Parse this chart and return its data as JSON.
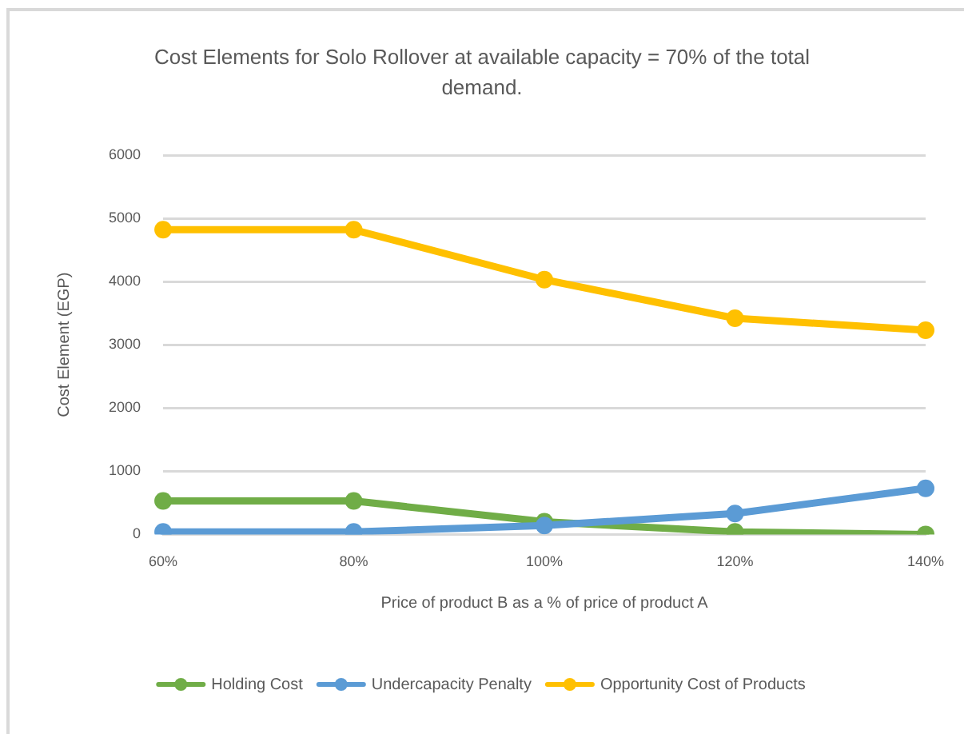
{
  "chart_data": {
    "type": "line",
    "title": "Cost Elements for Solo Rollover at available capacity = 70% of the total demand.",
    "xlabel": "Price of product B as a % of price of product A",
    "ylabel": "Cost Element (EGP)",
    "categories": [
      "60%",
      "80%",
      "100%",
      "120%",
      "140%"
    ],
    "series": [
      {
        "name": "Holding Cost",
        "color": "#70ad47",
        "values": [
          530,
          530,
          200,
          40,
          0
        ]
      },
      {
        "name": "Undercapacity Penalty",
        "color": "#5b9bd5",
        "values": [
          40,
          40,
          140,
          330,
          730
        ]
      },
      {
        "name": "Opportunity Cost of Products",
        "color": "#ffc000",
        "values": [
          4820,
          4820,
          4030,
          3420,
          3230
        ]
      }
    ],
    "ylim": [
      0,
      6000
    ],
    "yticks": [
      0,
      1000,
      2000,
      3000,
      4000,
      5000,
      6000
    ],
    "grid": "y",
    "legend": "bottom",
    "marker": "circle"
  }
}
